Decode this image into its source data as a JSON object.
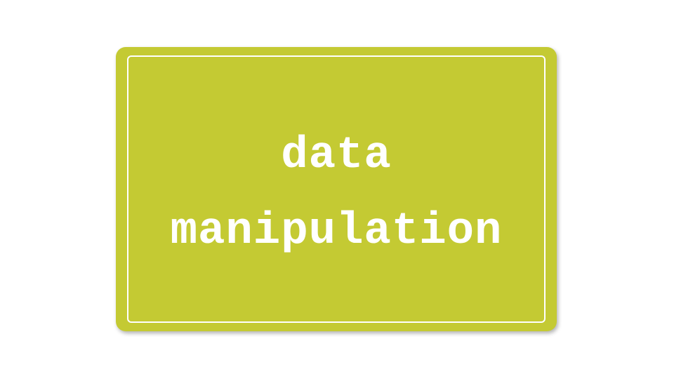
{
  "card": {
    "line1": "data",
    "line2": "manipulation",
    "background_color": "#C4CA33",
    "text_color": "#FFFFFF",
    "border_color": "#FFFFFF"
  }
}
